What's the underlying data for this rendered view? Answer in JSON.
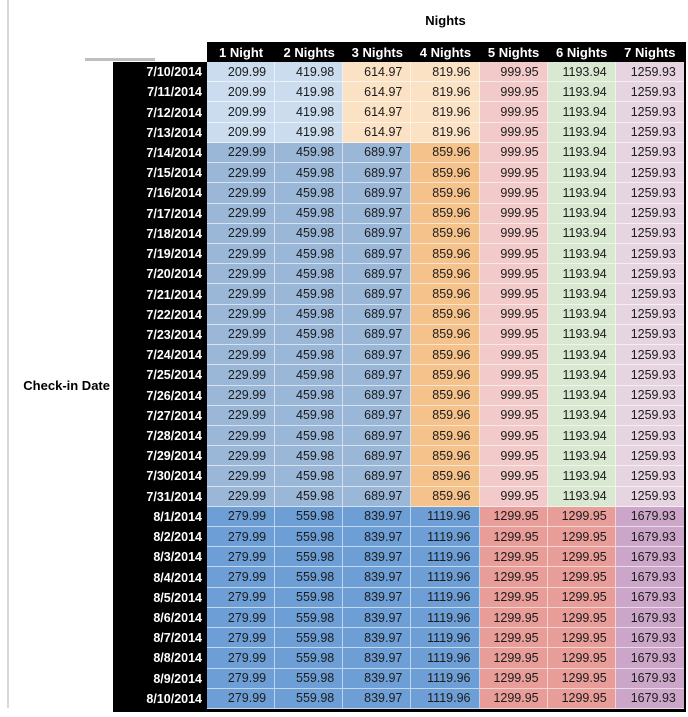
{
  "title_label": "Nights",
  "chart_data": {
    "type": "table",
    "title": "Nights",
    "row_axis_label": "Check-in Date",
    "columns": [
      "1 Night",
      "2 Nights",
      "3 Nights",
      "4 Nights",
      "5 Nights",
      "6 Nights",
      "7 Nights"
    ],
    "palette": {
      "light_blue": "#cbdcee",
      "mid_blue": "#9ab7d8",
      "dark_blue": "#6d9fd6",
      "light_orange": "#fbe2c5",
      "mid_orange": "#f6c28c",
      "light_red": "#f2caca",
      "mid_red": "#e89d99",
      "light_green": "#d8e8d1",
      "light_purple": "#e7d4e1",
      "mid_purple": "#cba6c8"
    },
    "bands": {
      "jul10_13": {
        "values": [
          209.99,
          419.98,
          614.97,
          819.96,
          999.95,
          1193.94,
          1259.93
        ],
        "cell_colors": [
          "light_blue",
          "light_blue",
          "light_orange",
          "light_orange",
          "light_red",
          "light_green",
          "light_purple"
        ]
      },
      "jul14_31": {
        "values": [
          229.99,
          459.98,
          689.97,
          859.96,
          999.95,
          1193.94,
          1259.93
        ],
        "cell_colors": [
          "mid_blue",
          "mid_blue",
          "mid_blue",
          "mid_orange",
          "light_red",
          "light_green",
          "light_purple"
        ]
      },
      "aug1_10": {
        "values": [
          279.99,
          559.98,
          839.97,
          1119.96,
          1299.95,
          1299.95,
          1679.93
        ],
        "cell_colors": [
          "dark_blue",
          "dark_blue",
          "dark_blue",
          "dark_blue",
          "mid_red",
          "mid_red",
          "mid_purple"
        ]
      }
    },
    "rows": [
      {
        "date": "7/10/2014",
        "band": "jul10_13"
      },
      {
        "date": "7/11/2014",
        "band": "jul10_13"
      },
      {
        "date": "7/12/2014",
        "band": "jul10_13"
      },
      {
        "date": "7/13/2014",
        "band": "jul10_13"
      },
      {
        "date": "7/14/2014",
        "band": "jul14_31"
      },
      {
        "date": "7/15/2014",
        "band": "jul14_31"
      },
      {
        "date": "7/16/2014",
        "band": "jul14_31"
      },
      {
        "date": "7/17/2014",
        "band": "jul14_31"
      },
      {
        "date": "7/18/2014",
        "band": "jul14_31"
      },
      {
        "date": "7/19/2014",
        "band": "jul14_31"
      },
      {
        "date": "7/20/2014",
        "band": "jul14_31"
      },
      {
        "date": "7/21/2014",
        "band": "jul14_31"
      },
      {
        "date": "7/22/2014",
        "band": "jul14_31"
      },
      {
        "date": "7/23/2014",
        "band": "jul14_31"
      },
      {
        "date": "7/24/2014",
        "band": "jul14_31"
      },
      {
        "date": "7/25/2014",
        "band": "jul14_31"
      },
      {
        "date": "7/26/2014",
        "band": "jul14_31"
      },
      {
        "date": "7/27/2014",
        "band": "jul14_31"
      },
      {
        "date": "7/28/2014",
        "band": "jul14_31"
      },
      {
        "date": "7/29/2014",
        "band": "jul14_31"
      },
      {
        "date": "7/30/2014",
        "band": "jul14_31"
      },
      {
        "date": "7/31/2014",
        "band": "jul14_31"
      },
      {
        "date": "8/1/2014",
        "band": "aug1_10"
      },
      {
        "date": "8/2/2014",
        "band": "aug1_10"
      },
      {
        "date": "8/3/2014",
        "band": "aug1_10"
      },
      {
        "date": "8/4/2014",
        "band": "aug1_10"
      },
      {
        "date": "8/5/2014",
        "band": "aug1_10"
      },
      {
        "date": "8/6/2014",
        "band": "aug1_10"
      },
      {
        "date": "8/7/2014",
        "band": "aug1_10"
      },
      {
        "date": "8/8/2014",
        "band": "aug1_10"
      },
      {
        "date": "8/9/2014",
        "band": "aug1_10"
      },
      {
        "date": "8/10/2014",
        "band": "aug1_10"
      }
    ]
  }
}
